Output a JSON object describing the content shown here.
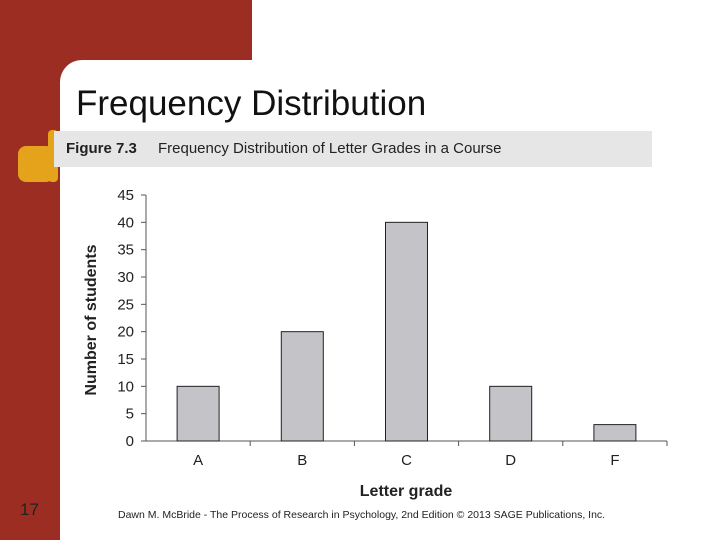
{
  "slide": {
    "title": "Frequency Distribution",
    "page_number": "17",
    "footer": "Dawn M. McBride - The Process of Research in Psychology, 2nd Edition © 2013 SAGE Publications, Inc."
  },
  "figure": {
    "number": "Figure 7.3",
    "caption": "Frequency Distribution of Letter Grades in a Course"
  },
  "colors": {
    "background_left": "#9b2d22",
    "accent": "#e5a21b",
    "bar_fill": "#c4c4c8"
  },
  "chart_data": {
    "type": "bar",
    "categories": [
      "A",
      "B",
      "C",
      "D",
      "F"
    ],
    "values": [
      10,
      20,
      40,
      10,
      3
    ],
    "xlabel": "Letter grade",
    "ylabel": "Number of students",
    "ylim": [
      0,
      45
    ],
    "yticks": [
      0,
      5,
      10,
      15,
      20,
      25,
      30,
      35,
      40,
      45
    ],
    "grid": false
  }
}
